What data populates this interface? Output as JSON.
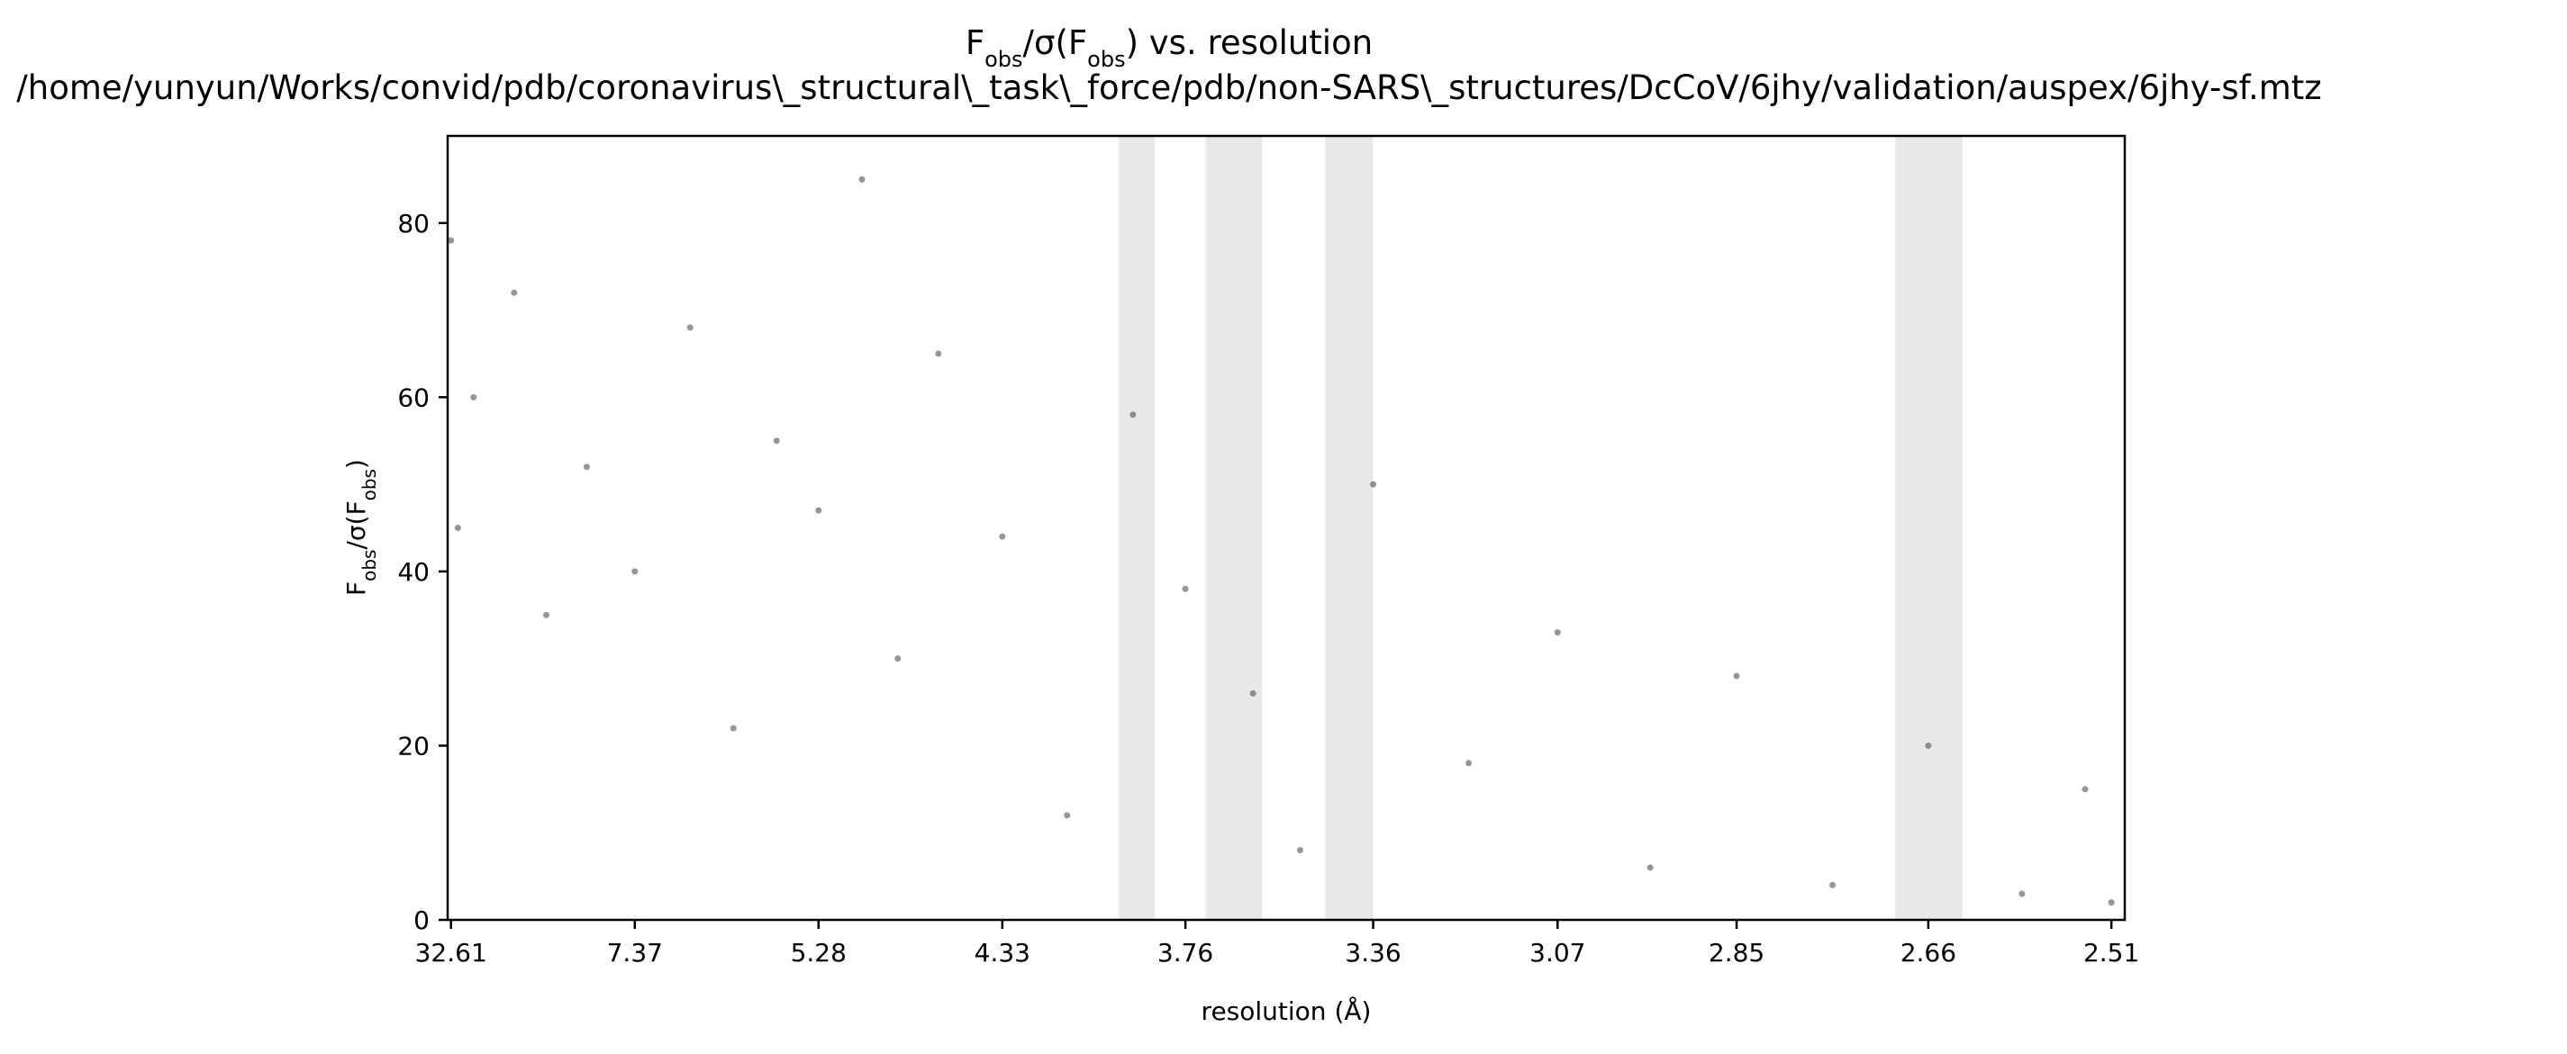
{
  "chart_data": {
    "type": "scatter",
    "title": "Fobs/σ(Fobs) vs. resolution",
    "subtitle": "/home/yunyun/Works/convid/pdb/coronavirus\\_structural\\_task\\_force/pdb/non-SARS\\_structures/DcCoV/6jhy/validation/auspex/6jhy-sf.mtz",
    "xlabel": "resolution (Å)",
    "ylabel": "Fobs/σ(Fobs)",
    "x_scale": "1/d² (ticks labelled as resolution in Å)",
    "xlim_angstrom": [
      40.0,
      2.5
    ],
    "ylim": [
      0,
      90
    ],
    "x_ticks": [
      "32.61",
      "7.37",
      "5.28",
      "4.33",
      "3.76",
      "3.36",
      "3.07",
      "2.85",
      "2.66",
      "2.51"
    ],
    "y_ticks": [
      0,
      20,
      40,
      60,
      80
    ],
    "highlighted_resolution_bands_angstrom": [
      [
        3.94,
        3.84
      ],
      [
        3.71,
        3.58
      ],
      [
        3.45,
        3.36
      ],
      [
        2.69,
        2.63
      ]
    ],
    "grid": false,
    "legend": "none",
    "point_color": "#404040",
    "band_color": "#e8e8e8",
    "sample_points": [
      {
        "d": 32.61,
        "y": 78
      },
      {
        "d": 25.0,
        "y": 45
      },
      {
        "d": 18.0,
        "y": 60
      },
      {
        "d": 12.0,
        "y": 72
      },
      {
        "d": 10.0,
        "y": 35
      },
      {
        "d": 8.5,
        "y": 52
      },
      {
        "d": 7.37,
        "y": 40
      },
      {
        "d": 6.5,
        "y": 68
      },
      {
        "d": 6.0,
        "y": 22
      },
      {
        "d": 5.6,
        "y": 55
      },
      {
        "d": 5.28,
        "y": 47
      },
      {
        "d": 5.0,
        "y": 85
      },
      {
        "d": 4.8,
        "y": 30
      },
      {
        "d": 4.6,
        "y": 65
      },
      {
        "d": 4.33,
        "y": 44
      },
      {
        "d": 4.1,
        "y": 12
      },
      {
        "d": 3.9,
        "y": 58
      },
      {
        "d": 3.76,
        "y": 38
      },
      {
        "d": 3.6,
        "y": 26
      },
      {
        "d": 3.5,
        "y": 8
      },
      {
        "d": 3.36,
        "y": 50
      },
      {
        "d": 3.2,
        "y": 18
      },
      {
        "d": 3.07,
        "y": 33
      },
      {
        "d": 2.95,
        "y": 6
      },
      {
        "d": 2.85,
        "y": 28
      },
      {
        "d": 2.75,
        "y": 4
      },
      {
        "d": 2.66,
        "y": 20
      },
      {
        "d": 2.58,
        "y": 3
      },
      {
        "d": 2.53,
        "y": 15
      },
      {
        "d": 2.51,
        "y": 2
      }
    ]
  }
}
